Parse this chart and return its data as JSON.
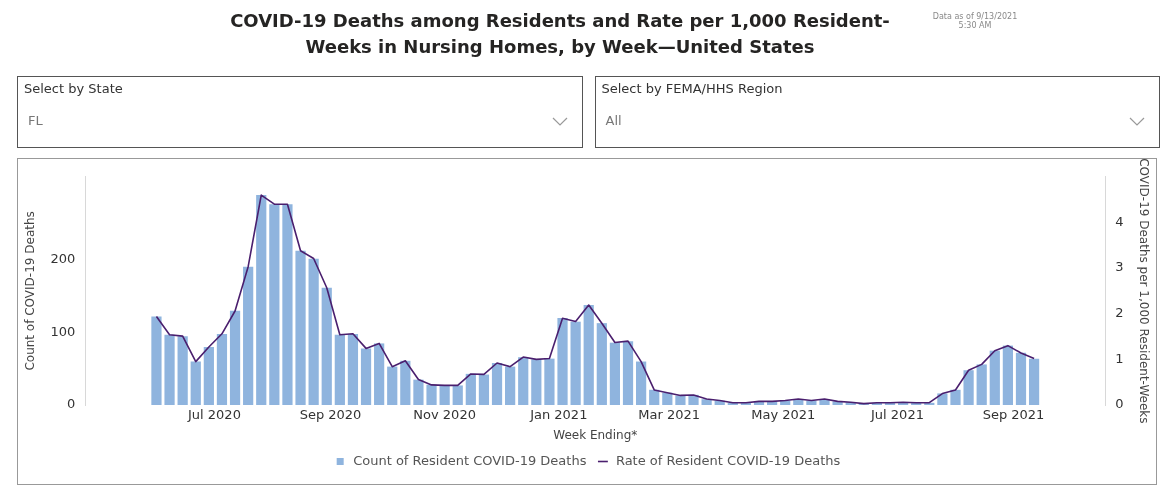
{
  "chart_data": {
    "type": "bar",
    "title": "COVID-19 Deaths among Residents and Rate per 1,000 Resident-Weeks in Nursing Homes, by Week—United States",
    "xlabel": "Week Ending*",
    "ylabel": "Count of COVID-19 Deaths",
    "y2label": "COVID-19 Deaths per 1,000 Resident-Weeks",
    "annotations": [
      "Data as of 9/13/2021 5:30 AM",
      "Select by State",
      "FL",
      "Select by FEMA/HHS Region",
      "All"
    ],
    "x": [
      "2020-05-31",
      "2020-06-07",
      "2020-06-14",
      "2020-06-21",
      "2020-06-28",
      "2020-07-05",
      "2020-07-12",
      "2020-07-19",
      "2020-07-26",
      "2020-08-02",
      "2020-08-09",
      "2020-08-16",
      "2020-08-23",
      "2020-08-30",
      "2020-09-06",
      "2020-09-13",
      "2020-09-20",
      "2020-09-27",
      "2020-10-04",
      "2020-10-11",
      "2020-10-18",
      "2020-10-25",
      "2020-11-01",
      "2020-11-08",
      "2020-11-15",
      "2020-11-22",
      "2020-11-29",
      "2020-12-06",
      "2020-12-13",
      "2020-12-20",
      "2020-12-27",
      "2021-01-03",
      "2021-01-10",
      "2021-01-17",
      "2021-01-24",
      "2021-01-31",
      "2021-02-07",
      "2021-02-14",
      "2021-02-21",
      "2021-02-28",
      "2021-03-07",
      "2021-03-14",
      "2021-03-21",
      "2021-03-28",
      "2021-04-04",
      "2021-04-11",
      "2021-04-18",
      "2021-04-25",
      "2021-05-02",
      "2021-05-09",
      "2021-05-16",
      "2021-05-23",
      "2021-05-30",
      "2021-06-06",
      "2021-06-13",
      "2021-06-20",
      "2021-06-27",
      "2021-07-04",
      "2021-07-11",
      "2021-07-18",
      "2021-07-25",
      "2021-08-01",
      "2021-08-08",
      "2021-08-15",
      "2021-08-22",
      "2021-08-29",
      "2021-09-05",
      "2021-09-12"
    ],
    "series": [
      {
        "name": "Count of Resident COVID-19 Deaths",
        "type": "bar",
        "color": "#8fb4de",
        "values": [
          122,
          97,
          95,
          60,
          80,
          98,
          130,
          191,
          290,
          277,
          277,
          213,
          202,
          162,
          97,
          98,
          78,
          85,
          53,
          61,
          35,
          28,
          27,
          27,
          43,
          42,
          58,
          53,
          66,
          63,
          64,
          120,
          115,
          138,
          113,
          86,
          88,
          60,
          21,
          17,
          13,
          14,
          8,
          6,
          3,
          3,
          5,
          5,
          6,
          8,
          6,
          8,
          5,
          4,
          2,
          3,
          3,
          4,
          3,
          3,
          16,
          21,
          48,
          56,
          75,
          82,
          72,
          64
        ]
      },
      {
        "name": "Rate of Resident COVID-19 Deaths",
        "type": "line",
        "axis": "y2",
        "color": "#4a1f6e",
        "values": [
          1.94,
          1.54,
          1.51,
          0.95,
          1.27,
          1.56,
          2.06,
          3.03,
          4.6,
          4.4,
          4.4,
          3.38,
          3.21,
          2.57,
          1.54,
          1.56,
          1.24,
          1.35,
          0.84,
          0.97,
          0.56,
          0.44,
          0.43,
          0.43,
          0.68,
          0.67,
          0.92,
          0.84,
          1.05,
          1.0,
          1.02,
          1.9,
          1.83,
          2.19,
          1.79,
          1.37,
          1.4,
          0.95,
          0.33,
          0.27,
          0.21,
          0.22,
          0.13,
          0.1,
          0.05,
          0.05,
          0.08,
          0.08,
          0.1,
          0.13,
          0.1,
          0.13,
          0.08,
          0.06,
          0.03,
          0.05,
          0.05,
          0.06,
          0.05,
          0.05,
          0.25,
          0.33,
          0.76,
          0.89,
          1.19,
          1.3,
          1.14,
          1.02
        ]
      }
    ],
    "xlim": [
      "2020-05-27",
      "2021-09-16"
    ],
    "xticks": [
      {
        "value": "2020-07-01",
        "label": "Jul 2020"
      },
      {
        "value": "2020-09-01",
        "label": "Sep 2020"
      },
      {
        "value": "2020-11-01",
        "label": "Nov 2020"
      },
      {
        "value": "2021-01-01",
        "label": "Jan 2021"
      },
      {
        "value": "2021-03-01",
        "label": "Mar 2021"
      },
      {
        "value": "2021-05-01",
        "label": "May 2021"
      },
      {
        "value": "2021-07-01",
        "label": "Jul 2021"
      },
      {
        "value": "2021-09-01",
        "label": "Sep 2021"
      }
    ],
    "ylim": [
      0,
      315
    ],
    "yticks": [
      0,
      100,
      200
    ],
    "y2lim": [
      0,
      5
    ],
    "y2ticks": [
      0,
      1,
      2,
      3,
      4
    ],
    "grid": false,
    "legend": "bottom",
    "marker": "none",
    "line_style": "solid"
  }
}
